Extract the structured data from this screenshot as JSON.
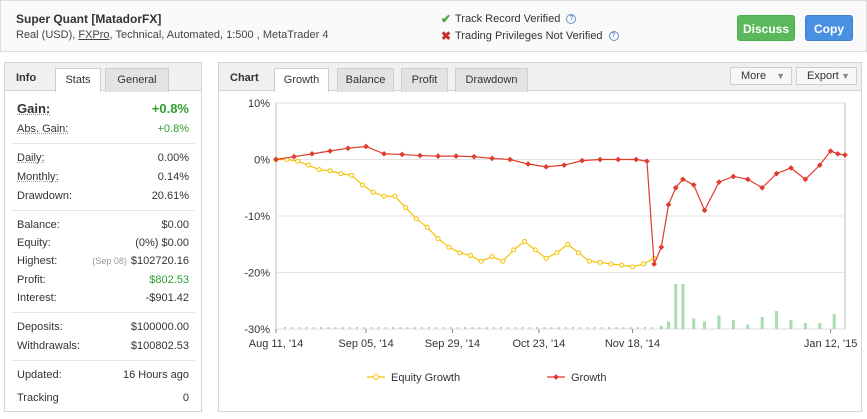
{
  "header": {
    "title": "Super Quant [MatadorFX]",
    "subtitle_pre": "Real (USD), ",
    "subtitle_link": "FXPro",
    "subtitle_post": ", Technical, Automated, 1:500 , MetaTrader 4",
    "track_record": "Track Record Verified",
    "trading_privileges": "Trading Privileges Not Verified",
    "discuss_label": "Discuss",
    "copy_label": "Copy"
  },
  "info": {
    "title": "Info",
    "tabs": [
      "Stats",
      "General"
    ],
    "gain_label": "Gain:",
    "gain_value": "+0.8%",
    "abs_gain_label": "Abs. Gain:",
    "abs_gain_value": "+0.8%",
    "daily_label": "Daily:",
    "daily_value": "0.00%",
    "monthly_label": "Monthly:",
    "monthly_value": "0.14%",
    "drawdown_label": "Drawdown:",
    "drawdown_value": "20.61%",
    "balance_label": "Balance:",
    "balance_value": "$0.00",
    "equity_label": "Equity:",
    "equity_value": "(0%) $0.00",
    "highest_label": "Highest:",
    "highest_date": "(Sep 08)",
    "highest_value": "$102720.16",
    "profit_label": "Profit:",
    "profit_value": "$802.53",
    "interest_label": "Interest:",
    "interest_value": "-$901.42",
    "deposits_label": "Deposits:",
    "deposits_value": "$100000.00",
    "withdrawals_label": "Withdrawals:",
    "withdrawals_value": "$100802.53",
    "updated_label": "Updated:",
    "updated_value": "16 Hours ago",
    "tracking_label": "Tracking",
    "tracking_value": "0"
  },
  "chart_panel": {
    "title": "Chart",
    "tabs": [
      "Growth",
      "Balance",
      "Profit",
      "Drawdown"
    ],
    "more_label": "More",
    "export_label": "Export"
  },
  "colors": {
    "equity_growth": "#f5c200",
    "growth": "#e03b2c",
    "volume_bars": "#a9dcb0",
    "positive": "#2f9e2f"
  },
  "chart_data": {
    "type": "line",
    "ylim": [
      -30,
      10
    ],
    "yticks": [
      "10%",
      "0%",
      "-10%",
      "-20%",
      "-30%"
    ],
    "xticks": [
      "Aug 11, '14",
      "Sep 05, '14",
      "Sep 29, '14",
      "Oct 23, '14",
      "Nov 18, '14",
      "Jan 12, '15"
    ],
    "grid": true,
    "legend_position": "bottom",
    "x_range": [
      "2014-08-11",
      "2015-01-16"
    ],
    "series": [
      {
        "name": "Equity Growth",
        "x": [
          "2014-08-11",
          "2014-08-14",
          "2014-08-17",
          "2014-08-20",
          "2014-08-23",
          "2014-08-26",
          "2014-08-29",
          "2014-09-01",
          "2014-09-04",
          "2014-09-07",
          "2014-09-10",
          "2014-09-13",
          "2014-09-16",
          "2014-09-19",
          "2014-09-22",
          "2014-09-25",
          "2014-09-28",
          "2014-10-01",
          "2014-10-04",
          "2014-10-07",
          "2014-10-10",
          "2014-10-13",
          "2014-10-16",
          "2014-10-19",
          "2014-10-22",
          "2014-10-25",
          "2014-10-28",
          "2014-10-31",
          "2014-11-03",
          "2014-11-06",
          "2014-11-09",
          "2014-11-12",
          "2014-11-15",
          "2014-11-18",
          "2014-11-21",
          "2014-11-24"
        ],
        "y": [
          0.0,
          0.0,
          -0.3,
          -1.0,
          -1.8,
          -2.0,
          -2.5,
          -2.8,
          -4.5,
          -5.8,
          -6.5,
          -6.5,
          -8.5,
          -10.5,
          -12.0,
          -14.0,
          -15.5,
          -16.5,
          -17.0,
          -18.0,
          -17.2,
          -18.0,
          -16.0,
          -14.5,
          -16.0,
          -17.5,
          -16.5,
          -15.0,
          -16.5,
          -18.0,
          -18.2,
          -18.5,
          -18.7,
          -19.0,
          -18.5,
          -17.5
        ]
      },
      {
        "name": "Growth",
        "x": [
          "2014-08-11",
          "2014-08-16",
          "2014-08-21",
          "2014-08-26",
          "2014-08-31",
          "2014-09-05",
          "2014-09-10",
          "2014-09-15",
          "2014-09-20",
          "2014-09-25",
          "2014-09-30",
          "2014-10-05",
          "2014-10-10",
          "2014-10-15",
          "2014-10-20",
          "2014-10-25",
          "2014-10-30",
          "2014-11-04",
          "2014-11-09",
          "2014-11-14",
          "2014-11-19",
          "2014-11-22",
          "2014-11-24",
          "2014-11-26",
          "2014-11-28",
          "2014-11-30",
          "2014-12-02",
          "2014-12-05",
          "2014-12-08",
          "2014-12-12",
          "2014-12-16",
          "2014-12-20",
          "2014-12-24",
          "2014-12-28",
          "2015-01-01",
          "2015-01-05",
          "2015-01-09",
          "2015-01-12",
          "2015-01-14",
          "2015-01-16"
        ],
        "y": [
          0.0,
          0.5,
          1.0,
          1.5,
          2.0,
          2.3,
          1.0,
          0.9,
          0.7,
          0.6,
          0.6,
          0.5,
          0.2,
          0.0,
          -0.8,
          -1.3,
          -1.0,
          -0.2,
          0.0,
          0.0,
          0.0,
          -0.3,
          -18.5,
          -15.5,
          -8.0,
          -5.0,
          -3.5,
          -4.5,
          -9.0,
          -4.0,
          -3.0,
          -3.5,
          -5.0,
          -2.5,
          -1.5,
          -3.5,
          -1.0,
          1.5,
          1.0,
          0.8
        ]
      }
    ],
    "volume_bars_approx": true
  }
}
